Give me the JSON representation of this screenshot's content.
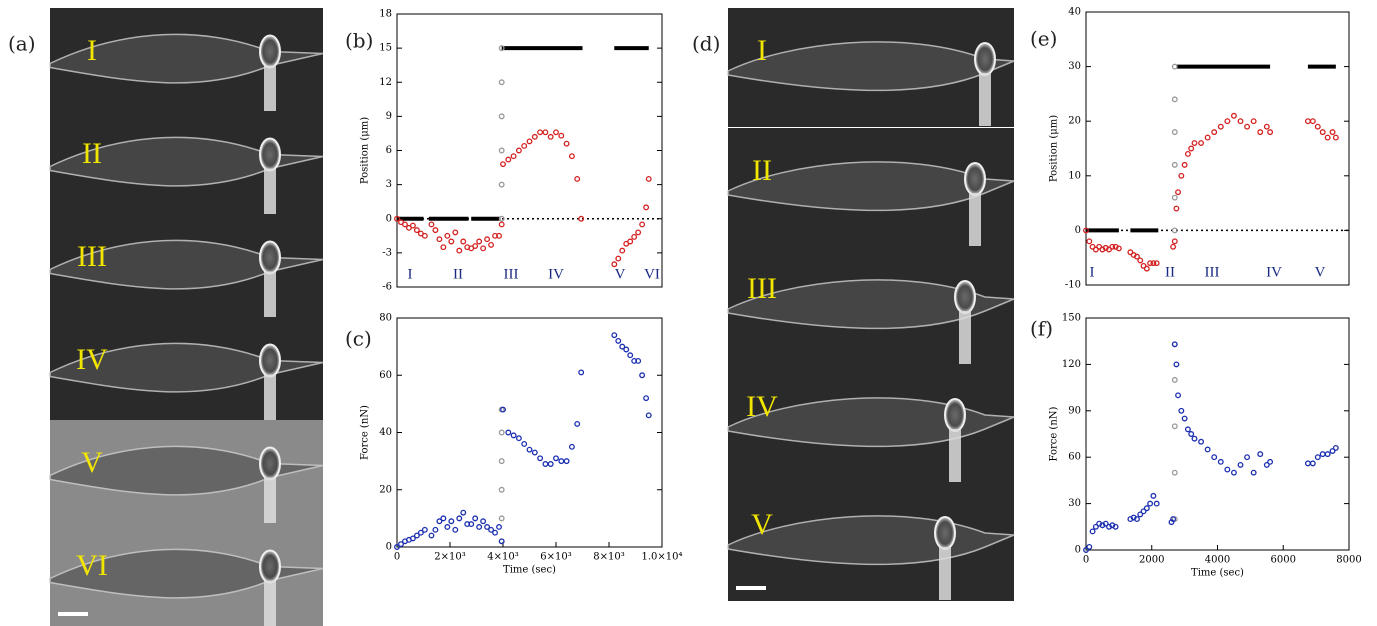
{
  "panels": [
    {
      "label": "(a)",
      "frames": [
        "I",
        "II",
        "III",
        "IV",
        "V",
        "VI"
      ]
    },
    {
      "label": "(d)",
      "frames": [
        "I",
        "II",
        "III",
        "IV",
        "V"
      ]
    }
  ],
  "chart_data": [
    {
      "type": "scatter",
      "panel_label": "(b)",
      "y_label": "Position (μm)",
      "xlim": [
        0,
        10000
      ],
      "ylim": [
        -6,
        18
      ],
      "yticks": [
        -6,
        -3,
        0,
        3,
        6,
        9,
        12,
        15,
        18
      ],
      "reference_line": 0,
      "annotations": [
        "I",
        "II",
        "III",
        "IV",
        "V",
        "VI"
      ],
      "series": [
        {
          "color": "#000000",
          "mode": "line",
          "x": [
            0,
            1000,
            null,
            1200,
            2700,
            null,
            2800,
            3900,
            null,
            3950,
            7000,
            null,
            8200,
            9500
          ],
          "values": [
            0,
            0,
            null,
            0,
            0,
            null,
            0,
            0,
            null,
            15,
            15,
            null,
            15,
            15
          ]
        },
        {
          "color": "#999999",
          "mode": "markers",
          "x": [
            3950,
            3950,
            3950,
            3950,
            3950,
            3950
          ],
          "values": [
            0,
            3,
            6,
            9,
            12,
            15
          ]
        },
        {
          "color": "#d42020",
          "mode": "markers",
          "x": [
            0,
            150,
            300,
            450,
            600,
            750,
            900,
            1050,
            1300,
            1450,
            1600,
            1750,
            1900,
            2050,
            2200,
            2350,
            2500,
            2650,
            2800,
            2950,
            3100,
            3250,
            3400,
            3550,
            3700,
            3850,
            3950,
            4000,
            4200,
            4400,
            4600,
            4800,
            5000,
            5200,
            5400,
            5600,
            5800,
            6000,
            6200,
            6400,
            6600,
            6800,
            6950,
            8200,
            8350,
            8500,
            8650,
            8800,
            8950,
            9100,
            9250,
            9400,
            9500
          ],
          "values": [
            0,
            -0.3,
            -0.5,
            -0.8,
            -0.6,
            -1,
            -1.3,
            -1.5,
            -0.5,
            -1,
            -1.8,
            -2.5,
            -1.5,
            -2,
            -1.2,
            -2.8,
            -2,
            -2.5,
            -2.6,
            -2.4,
            -2,
            -2.6,
            -1.8,
            -2.3,
            -1.5,
            -1.5,
            -0.5,
            4.8,
            5.2,
            5.5,
            6,
            6.4,
            6.8,
            7.2,
            7.6,
            7.6,
            7.2,
            7.6,
            7.3,
            6.6,
            5.5,
            3.5,
            0,
            -4,
            -3.5,
            -2.8,
            -2.2,
            -2,
            -1.6,
            -1.2,
            -0.5,
            1,
            3.5
          ]
        }
      ]
    },
    {
      "type": "scatter",
      "panel_label": "(c)",
      "y_label": "Force (nN)",
      "x_label": "Time (sec)",
      "xlim": [
        0,
        10000
      ],
      "ylim": [
        0,
        80
      ],
      "yticks": [
        0,
        20,
        40,
        60,
        80
      ],
      "xticks": [
        0,
        {
          "value": 2000,
          "label": "2×10³"
        },
        {
          "value": 4000,
          "label": "4×10³"
        },
        {
          "value": 6000,
          "label": "6×10³"
        },
        {
          "value": 8000,
          "label": "8×10³"
        },
        {
          "value": 10000,
          "label": "1.0×10⁴"
        }
      ],
      "series": [
        {
          "color": "#999999",
          "mode": "markers",
          "x": [
            3950,
            3950,
            3950,
            3950,
            3950,
            3950
          ],
          "values": [
            2,
            10,
            20,
            30,
            40,
            48
          ]
        },
        {
          "color": "#1a2eb0",
          "mode": "markers",
          "x": [
            0,
            150,
            300,
            450,
            600,
            750,
            900,
            1050,
            1300,
            1450,
            1600,
            1750,
            1900,
            2050,
            2200,
            2350,
            2500,
            2650,
            2800,
            2950,
            3100,
            3250,
            3400,
            3550,
            3700,
            3850,
            3950,
            4000,
            4200,
            4400,
            4600,
            4800,
            5000,
            5200,
            5400,
            5600,
            5800,
            6000,
            6200,
            6400,
            6600,
            6800,
            6950,
            8200,
            8350,
            8500,
            8650,
            8800,
            8950,
            9100,
            9250,
            9400,
            9500
          ],
          "values": [
            0,
            1,
            2,
            2.5,
            3,
            4,
            5,
            6,
            4,
            6,
            9,
            10,
            7,
            9,
            6,
            10,
            12,
            8,
            8,
            10,
            7,
            9,
            7,
            6,
            5,
            7,
            2,
            48,
            40,
            39,
            38,
            36,
            34,
            33,
            31,
            29,
            29,
            31,
            30,
            30,
            35,
            43,
            61,
            74,
            72,
            70,
            69,
            67,
            65,
            65,
            60,
            52,
            46
          ]
        }
      ]
    },
    {
      "type": "scatter",
      "panel_label": "(e)",
      "y_label": "Position (μm)",
      "xlim": [
        0,
        8000
      ],
      "ylim": [
        -10,
        40
      ],
      "yticks": [
        -10,
        0,
        10,
        20,
        30,
        40
      ],
      "reference_line": 0,
      "annotations": [
        "I",
        "II",
        "III",
        "IV",
        "V"
      ],
      "series": [
        {
          "color": "#000000",
          "mode": "line",
          "x": [
            0,
            1000,
            null,
            1350,
            2200,
            null,
            2750,
            5600,
            null,
            6750,
            7600
          ],
          "values": [
            0,
            0,
            null,
            0,
            0,
            null,
            30,
            30,
            null,
            30,
            30
          ]
        },
        {
          "color": "#999999",
          "mode": "markers",
          "x": [
            2700,
            2700,
            2700,
            2700,
            2700,
            2700
          ],
          "values": [
            0,
            6,
            12,
            18,
            24,
            30
          ]
        },
        {
          "color": "#d42020",
          "mode": "markers",
          "x": [
            0,
            100,
            200,
            300,
            400,
            500,
            600,
            700,
            800,
            900,
            1000,
            1350,
            1450,
            1550,
            1650,
            1750,
            1850,
            1950,
            2050,
            2150,
            2650,
            2700,
            2750,
            2800,
            2900,
            3000,
            3100,
            3200,
            3300,
            3500,
            3700,
            3900,
            4100,
            4300,
            4500,
            4700,
            4900,
            5100,
            5300,
            5500,
            5600,
            6750,
            6900,
            7050,
            7200,
            7350,
            7500,
            7600
          ],
          "values": [
            0,
            -2,
            -3,
            -3.5,
            -3,
            -3.5,
            -3.2,
            -3.5,
            -3,
            -3,
            -3.3,
            -4,
            -4.5,
            -4.8,
            -5.5,
            -6.5,
            -7,
            -6,
            -6,
            -6,
            -3,
            -2,
            4,
            7,
            10,
            12,
            14,
            15,
            16,
            16,
            17,
            18,
            19,
            20,
            21,
            20,
            19,
            20,
            18,
            19,
            18,
            20,
            20,
            19,
            18,
            17,
            18,
            17
          ]
        }
      ]
    },
    {
      "type": "scatter",
      "panel_label": "(f)",
      "y_label": "Force (nN)",
      "x_label": "Time (sec)",
      "xlim": [
        0,
        8000
      ],
      "ylim": [
        0,
        150
      ],
      "yticks": [
        0,
        30,
        60,
        90,
        120,
        150
      ],
      "xticks": [
        0,
        2000,
        4000,
        6000,
        8000
      ],
      "series": [
        {
          "color": "#999999",
          "mode": "markers",
          "x": [
            2700,
            2700,
            2700,
            2700,
            2700
          ],
          "values": [
            20,
            50,
            80,
            110,
            133
          ]
        },
        {
          "color": "#1a2eb0",
          "mode": "markers",
          "x": [
            0,
            100,
            200,
            300,
            400,
            500,
            600,
            700,
            800,
            900,
            1350,
            1450,
            1550,
            1650,
            1750,
            1850,
            1950,
            2050,
            2150,
            2600,
            2650,
            2700,
            2750,
            2800,
            2900,
            3000,
            3100,
            3200,
            3300,
            3500,
            3700,
            3900,
            4100,
            4300,
            4500,
            4700,
            4900,
            5100,
            5300,
            5500,
            5600,
            6750,
            6900,
            7050,
            7200,
            7350,
            7500,
            7600
          ],
          "values": [
            0,
            2,
            12,
            15,
            17,
            16,
            17,
            15,
            16,
            15,
            20,
            21,
            20,
            23,
            25,
            27,
            30,
            35,
            30,
            18,
            20,
            133,
            120,
            100,
            90,
            85,
            78,
            75,
            72,
            70,
            65,
            60,
            57,
            52,
            50,
            55,
            60,
            50,
            62,
            55,
            57,
            56,
            56,
            60,
            62,
            62,
            64,
            66
          ]
        }
      ]
    }
  ]
}
